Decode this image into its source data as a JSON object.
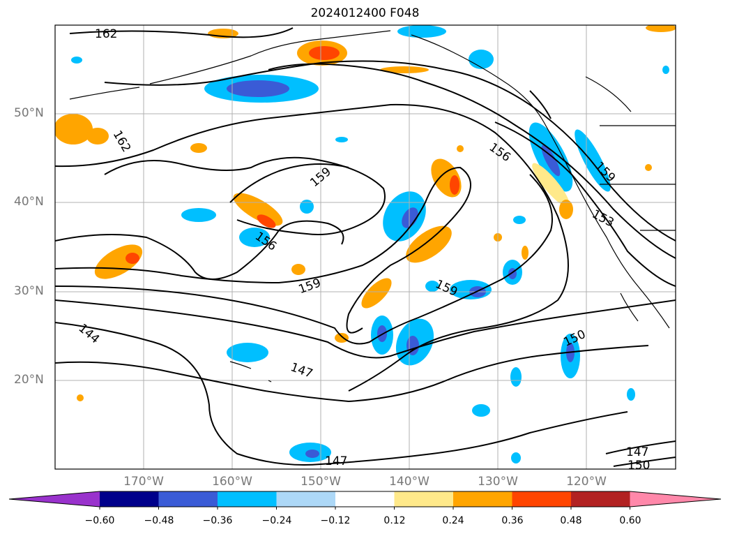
{
  "title": "2024012400 F048",
  "axes": {
    "lat_labels": [
      "50°N",
      "40°N",
      "30°N",
      "20°N"
    ],
    "lon_labels": [
      "170°W",
      "160°W",
      "150°W",
      "140°W",
      "130°W",
      "120°W"
    ]
  },
  "contour_labels": [
    "162",
    "162",
    "159",
    "159",
    "159",
    "156",
    "156",
    "159",
    "153",
    "150",
    "144",
    "147",
    "147",
    "147",
    "150"
  ],
  "colorbar": {
    "ticks": [
      "−0.60",
      "−0.48",
      "−0.36",
      "−0.24",
      "−0.12",
      "0.12",
      "0.24",
      "0.36",
      "0.48",
      "0.60"
    ],
    "colors": [
      "#9932cc",
      "#00008b",
      "#3a5bd6",
      "#00bfff",
      "#add8f7",
      "#ffffff",
      "#ffe98a",
      "#ffa500",
      "#ff4500",
      "#b22222",
      "#ff88aa"
    ]
  },
  "colors": {
    "grid": "#b0b0b0",
    "contour": "#000000",
    "coast": "#000000",
    "tick_label": "#777777"
  }
}
